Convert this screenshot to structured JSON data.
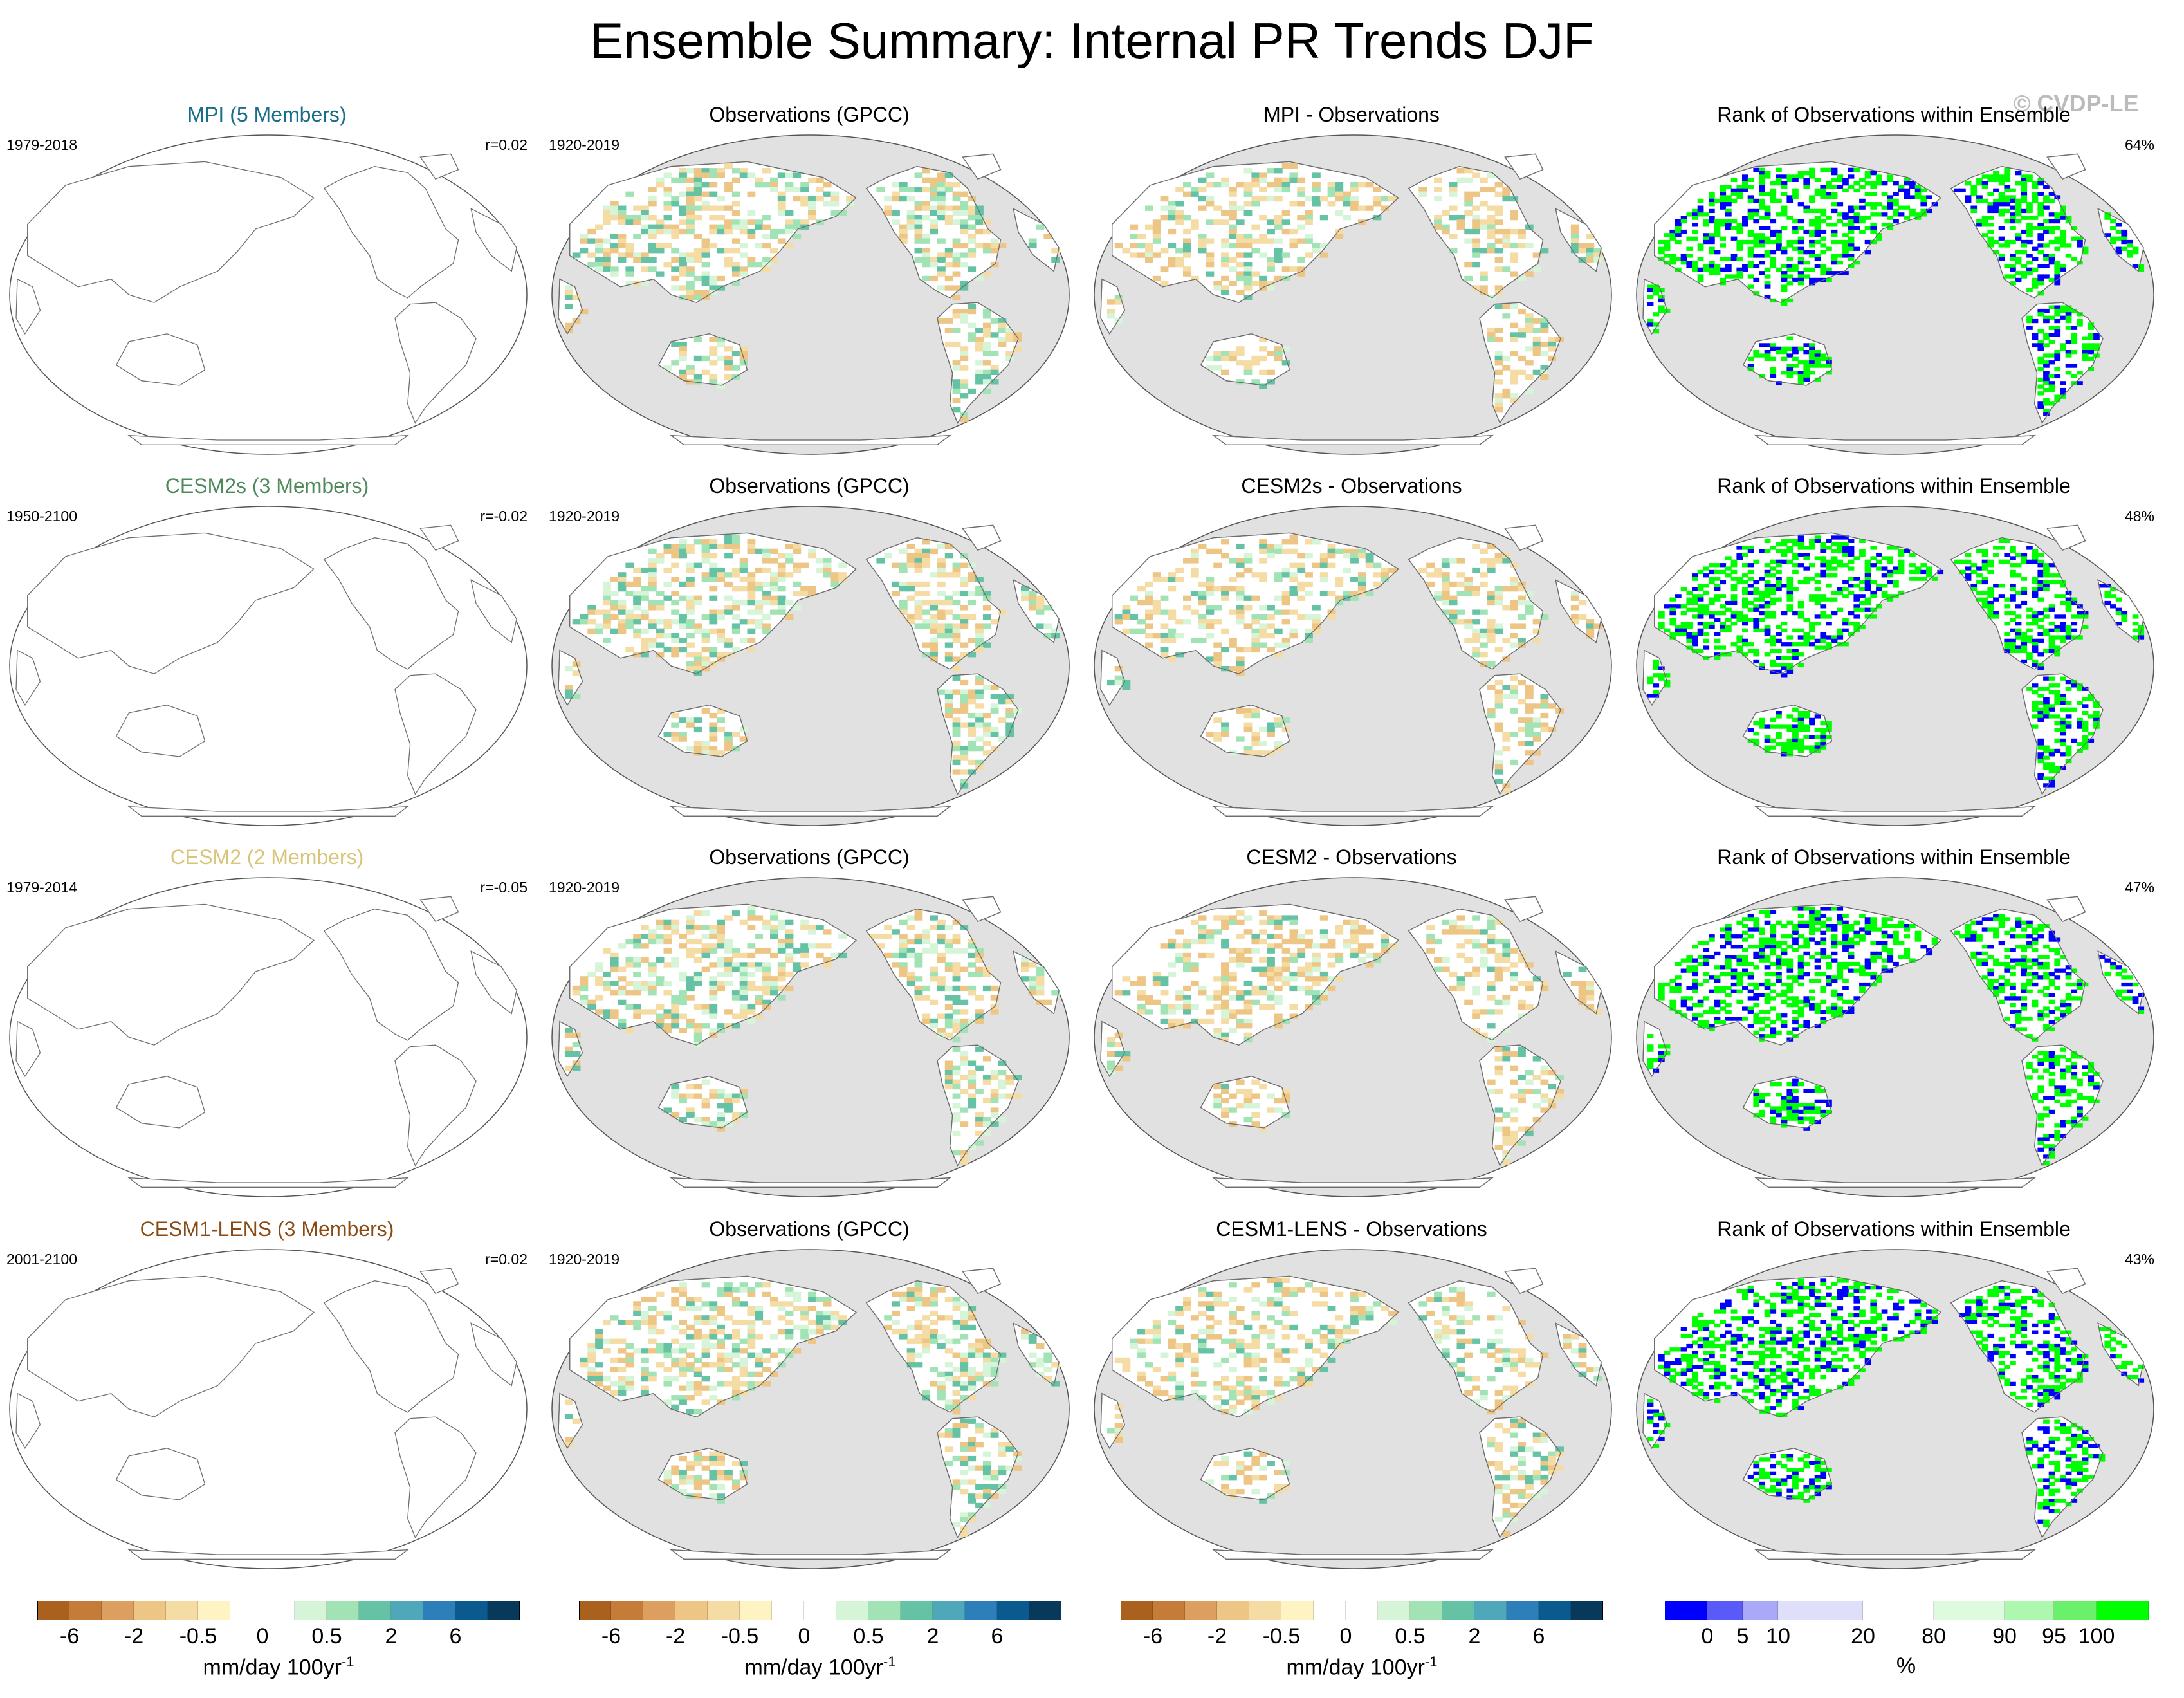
{
  "title": "Ensemble Summary: Internal PR Trends DJF",
  "copyright": "© CVDP-LE",
  "colors": {
    "ocean_fill": "#e1e1e1",
    "land_fill": "#ffffff",
    "coast": "#6e6e6e",
    "rank_low": "#0000ff",
    "rank_high": "#00ff00"
  },
  "rows": [
    {
      "model": {
        "label": "MPI (5 Members)",
        "color": "#1a6e8a",
        "period": "1979-2018",
        "r": "r=0.02"
      },
      "obs": {
        "label": "Observations (GPCC)",
        "period": "1920-2019"
      },
      "diff": {
        "label": "MPI - Observations"
      },
      "rank": {
        "label": "Rank of Observations within Ensemble",
        "pct": "64%"
      }
    },
    {
      "model": {
        "label": "CESM2s (3 Members)",
        "color": "#4f8a5b",
        "period": "1950-2100",
        "r": "r=-0.02"
      },
      "obs": {
        "label": "Observations (GPCC)",
        "period": "1920-2019"
      },
      "diff": {
        "label": "CESM2s - Observations"
      },
      "rank": {
        "label": "Rank of Observations within Ensemble",
        "pct": "48%"
      }
    },
    {
      "model": {
        "label": "CESM2 (2 Members)",
        "color": "#d8c57a",
        "period": "1979-2014",
        "r": "r=-0.05"
      },
      "obs": {
        "label": "Observations (GPCC)",
        "period": "1920-2019"
      },
      "diff": {
        "label": "CESM2 - Observations"
      },
      "rank": {
        "label": "Rank of Observations within Ensemble",
        "pct": "47%"
      }
    },
    {
      "model": {
        "label": "CESM1-LENS (3 Members)",
        "color": "#8a4a14",
        "period": "2001-2100",
        "r": "r=0.02"
      },
      "obs": {
        "label": "Observations (GPCC)",
        "period": "1920-2019"
      },
      "diff": {
        "label": "CESM1-LENS - Observations"
      },
      "rank": {
        "label": "Rank of Observations within Ensemble",
        "pct": "43%"
      }
    }
  ],
  "trend_colorbar": {
    "colors": [
      "#a9611d",
      "#c47c38",
      "#dc9f5f",
      "#edc585",
      "#f4dca4",
      "#fdf3c3",
      "#ffffff",
      "#ffffff",
      "#d6f5d8",
      "#a2e3b5",
      "#66c2a4",
      "#4fa7ba",
      "#2c7fb8",
      "#0b5a8f",
      "#08385a"
    ],
    "ticks": [
      {
        "label": "-6",
        "box": 1
      },
      {
        "label": "-2",
        "box": 3
      },
      {
        "label": "-0.5",
        "box": 5
      },
      {
        "label": "0",
        "box": 7
      },
      {
        "label": "0.5",
        "box": 9
      },
      {
        "label": "2",
        "box": 11
      },
      {
        "label": "6",
        "box": 13
      }
    ],
    "unit": "mm/day 100yr",
    "unit_sup": "-1"
  },
  "rank_colorbar": {
    "colors": [
      "#0000ff",
      "#5a5af8",
      "#a9a9f7",
      "#dfdff9",
      "#ffffff",
      "#dffbdf",
      "#aef7ae",
      "#6af06a",
      "#00ff00"
    ],
    "widths": [
      0.088,
      0.073,
      0.073,
      0.176,
      0.146,
      0.146,
      0.102,
      0.088,
      0.108
    ],
    "ticks": [
      "0",
      "5",
      "10",
      "20",
      "80",
      "90",
      "95",
      "100"
    ],
    "unit": "%"
  },
  "chart_data": [
    {
      "type": "heatmap",
      "panel": "model-trend",
      "title": "MPI (5 Members)",
      "period": "1979-2018",
      "r": "r=0.02"
    },
    {
      "type": "heatmap",
      "panel": "observed-trend",
      "title": "Observations (GPCC)",
      "period": "1920-2019"
    },
    {
      "type": "heatmap",
      "panel": "difference",
      "title": "MPI - Observations"
    },
    {
      "type": "heatmap",
      "panel": "rank",
      "title": "Rank of Observations within Ensemble",
      "area_percent": 64
    },
    {
      "type": "heatmap",
      "panel": "model-trend",
      "title": "CESM2s (3 Members)",
      "period": "1950-2100",
      "r": "r=-0.02"
    },
    {
      "type": "heatmap",
      "panel": "difference",
      "title": "CESM2s - Observations"
    },
    {
      "type": "heatmap",
      "panel": "rank",
      "title": "Rank of Observations within Ensemble",
      "area_percent": 48
    },
    {
      "type": "heatmap",
      "panel": "model-trend",
      "title": "CESM2 (2 Members)",
      "period": "1979-2014",
      "r": "r=-0.05"
    },
    {
      "type": "heatmap",
      "panel": "difference",
      "title": "CESM2 - Observations"
    },
    {
      "type": "heatmap",
      "panel": "rank",
      "title": "Rank of Observations within Ensemble",
      "area_percent": 47
    },
    {
      "type": "heatmap",
      "panel": "model-trend",
      "title": "CESM1-LENS (3 Members)",
      "period": "2001-2100",
      "r": "r=0.02"
    },
    {
      "type": "heatmap",
      "panel": "difference",
      "title": "CESM1-LENS - Observations"
    },
    {
      "type": "heatmap",
      "panel": "rank",
      "title": "Rank of Observations within Ensemble",
      "area_percent": 43
    }
  ]
}
